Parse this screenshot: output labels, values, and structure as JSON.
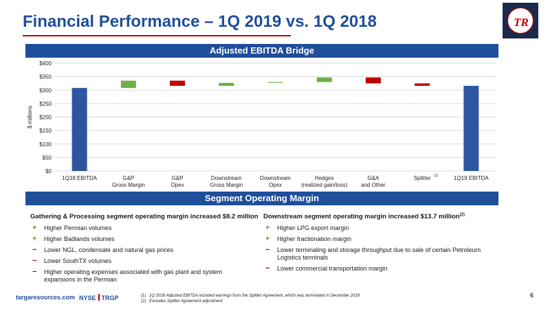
{
  "header": {
    "title": "Financial Performance – 1Q 2019 vs. 1Q 2018",
    "logo_text": "TR"
  },
  "ebitda_section": {
    "label": "Adjusted EBITDA Bridge"
  },
  "margin_section": {
    "label": "Segment Operating Margin"
  },
  "colors": {
    "brand_blue": "#1f4e9a",
    "increase_green": "#70ad47",
    "decrease_red": "#c00000",
    "total_blue": "#2e56a0"
  },
  "chart_data": {
    "type": "bar",
    "subtype": "waterfall",
    "ylabel": "$ millions",
    "ylim": [
      0,
      400
    ],
    "yticks": [
      "$0",
      "$50",
      "$100",
      "$150",
      "$200",
      "$250",
      "$300",
      "$350",
      "$400"
    ],
    "grid": true,
    "bars": [
      {
        "label": [
          "1Q18 EBITDA"
        ],
        "kind": "total",
        "start": 0,
        "end": 308
      },
      {
        "label": [
          "G&P",
          "Gross Margin"
        ],
        "kind": "increase",
        "start": 308,
        "end": 335
      },
      {
        "label": [
          "G&P",
          "Opex"
        ],
        "kind": "decrease",
        "start": 335,
        "end": 316
      },
      {
        "label": [
          "Downstream",
          "Gross Margin"
        ],
        "kind": "increase",
        "start": 316,
        "end": 327
      },
      {
        "label": [
          "Downstream",
          "Opex"
        ],
        "kind": "increase",
        "start": 327,
        "end": 330
      },
      {
        "label": [
          "Hedges",
          "(realized gain/loss)"
        ],
        "kind": "increase",
        "start": 330,
        "end": 347
      },
      {
        "label": [
          "G&A",
          "and Other"
        ],
        "kind": "decrease",
        "start": 347,
        "end": 325
      },
      {
        "label": [
          "Splitter"
        ],
        "kind": "decrease",
        "start": 325,
        "end": 316,
        "note": "(1)"
      },
      {
        "label": [
          "1Q19 EBITDA"
        ],
        "kind": "total",
        "start": 0,
        "end": 316
      }
    ]
  },
  "gp_column": {
    "heading": "Gathering & Processing segment operating margin increased $8.2 million",
    "items": [
      {
        "sign": "+",
        "type": "plus",
        "text": "Higher Permian volumes"
      },
      {
        "sign": "+",
        "type": "plus",
        "text": "Higher Badlands volumes"
      },
      {
        "sign": "−",
        "type": "minus",
        "text": "Lower NGL, condensate and natural gas prices"
      },
      {
        "sign": "−",
        "type": "minus",
        "text": "Lower SouthTX volumes"
      },
      {
        "sign": "−",
        "type": "minus",
        "text": "Higher operating expenses associated with gas plant and system expansions in the Permian"
      }
    ]
  },
  "ds_column": {
    "heading": "Downstream segment operating margin increased $13.7 million",
    "heading_note": "(2)",
    "items": [
      {
        "sign": "+",
        "type": "plus",
        "text": "Higher LPG export margin"
      },
      {
        "sign": "+",
        "type": "plus",
        "text": "Higher fractionation margin"
      },
      {
        "sign": "−",
        "type": "minus",
        "text": "Lower terminaling and storage throughput due to sale of certain Petroleum Logistics terminals"
      },
      {
        "sign": "−",
        "type": "minus",
        "text": "Lower commercial transportation margin"
      }
    ]
  },
  "footer": {
    "url": "targaresources.com",
    "exchange": "NYSE",
    "ticker": "TRGP",
    "footnotes": [
      {
        "num": "(1)",
        "text": "1Q 2018 Adjusted EBITDA included earnings from the Splitter Agreement, which was terminated in December 2018"
      },
      {
        "num": "(2)",
        "text": "Excludes Splitter Agreement adjustment"
      }
    ],
    "page_number": "6"
  }
}
